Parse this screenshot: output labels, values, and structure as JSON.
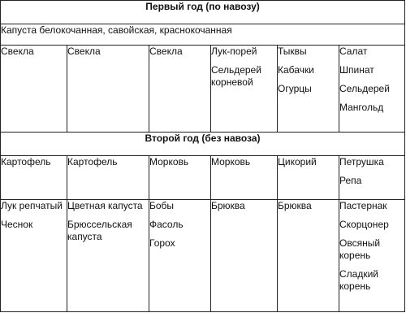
{
  "year1": {
    "heading": "Первый год (по навозу)",
    "cabbage": "Капуста белокочанная, савойская, краснокочанная",
    "columns": [
      [
        "Свекла"
      ],
      [
        "Свекла"
      ],
      [
        "Свекла"
      ],
      [
        "Лук-порей",
        "Сельдерей корневой"
      ],
      [
        "Тыквы",
        "Кабачки",
        "Огурцы"
      ],
      [
        "Салат",
        "Шпинат",
        "Сельдерей",
        "Мангольд"
      ]
    ]
  },
  "year2": {
    "heading": "Второй год (без навоза)",
    "row_a": [
      [
        "Картофель"
      ],
      [
        "Картофель"
      ],
      [
        "Морковь"
      ],
      [
        "Морковь"
      ],
      [
        "Цикорий"
      ],
      [
        "Петрушка",
        "Репа"
      ]
    ],
    "row_b": [
      [
        "Лук репчатый",
        "Чеснок"
      ],
      [
        "Цветная капуста",
        "Брюссельская капуста"
      ],
      [
        "Бобы",
        "Фасоль",
        "Горох"
      ],
      [
        "Брюква"
      ],
      [
        "Брюква"
      ],
      [
        "Пастернак",
        "Скорцонер",
        "Овсяный корень",
        "Сладкий корень"
      ]
    ]
  }
}
